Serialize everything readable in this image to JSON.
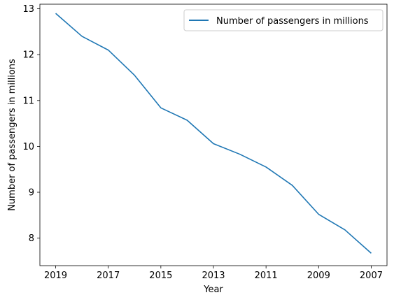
{
  "chart_data": {
    "type": "line",
    "title": "",
    "xlabel": "Year",
    "ylabel": "Number of passengers in millions",
    "x": [
      2019,
      2018,
      2017,
      2016,
      2015,
      2014,
      2013,
      2012,
      2011,
      2010,
      2009,
      2008,
      2007
    ],
    "x_ticks": [
      "2019",
      "2017",
      "2015",
      "2013",
      "2011",
      "2009",
      "2007"
    ],
    "x_inverted": true,
    "y_ticks": [
      "8",
      "9",
      "10",
      "11",
      "12",
      "13"
    ],
    "ylim": [
      7.4,
      13.1
    ],
    "grid": false,
    "legend_position": "upper right",
    "series": [
      {
        "name": "Number of passengers in millions",
        "color": "#1f77b4",
        "values": [
          12.9,
          12.4,
          12.1,
          11.55,
          10.84,
          10.57,
          10.06,
          9.83,
          9.55,
          9.15,
          8.52,
          8.18,
          7.67
        ]
      }
    ]
  }
}
